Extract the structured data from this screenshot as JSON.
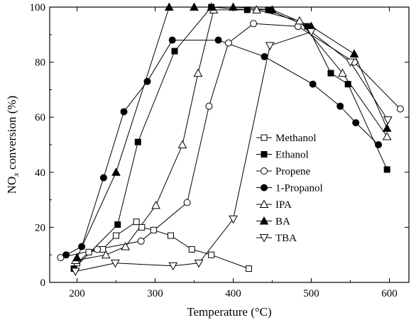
{
  "chart_data": {
    "type": "line",
    "xlabel": "Temperature (°C)",
    "ylabel": "NO",
    "ylabel_sub": "x",
    "ylabel_suffix": " conversion (%)",
    "xlim": [
      165,
      625
    ],
    "ylim": [
      0,
      100
    ],
    "xticks": [
      200,
      300,
      400,
      500,
      600
    ],
    "yticks": [
      0,
      20,
      40,
      60,
      80,
      100
    ],
    "grid": false,
    "legend_position": "center-right",
    "series": [
      {
        "name": "Methanol",
        "marker": "square-open",
        "x": [
          200,
          215,
          233,
          250,
          276,
          283,
          298,
          320,
          347,
          372,
          420
        ],
        "y": [
          7,
          11,
          12,
          17,
          22,
          20,
          19,
          17,
          12,
          10,
          5
        ]
      },
      {
        "name": "Ethanol",
        "marker": "square-filled",
        "x": [
          196,
          252,
          278,
          325,
          372,
          418,
          445,
          495,
          525,
          547,
          597
        ],
        "y": [
          5,
          21,
          51,
          84,
          100,
          99,
          99,
          93,
          76,
          72,
          41
        ]
      },
      {
        "name": "Propene",
        "marker": "circle-open",
        "x": [
          179,
          226,
          282,
          341,
          369,
          394,
          426,
          483,
          555,
          614
        ],
        "y": [
          9,
          12,
          15,
          29,
          64,
          87,
          94,
          93,
          80,
          63
        ]
      },
      {
        "name": "1-Propanol",
        "marker": "circle-filled",
        "x": [
          186,
          206,
          234,
          260,
          290,
          322,
          381,
          440,
          502,
          537,
          557,
          586
        ],
        "y": [
          10,
          13,
          38,
          62,
          73,
          88,
          88,
          82,
          72,
          64,
          58,
          50
        ]
      },
      {
        "name": "IPA",
        "marker": "triangle-up-open",
        "x": [
          198,
          237,
          262,
          301,
          335,
          355,
          375,
          430,
          485,
          540,
          597
        ],
        "y": [
          8,
          10,
          13,
          28,
          50,
          76,
          99,
          99,
          95,
          76,
          53
        ]
      },
      {
        "name": "BA",
        "marker": "triangle-up-filled",
        "x": [
          200,
          250,
          318,
          350,
          372,
          400,
          450,
          500,
          555,
          597
        ],
        "y": [
          9,
          40,
          100,
          100,
          100,
          100,
          99,
          93,
          83,
          56
        ]
      },
      {
        "name": "TBA",
        "marker": "triangle-down-open",
        "x": [
          198,
          249,
          323,
          356,
          400,
          447,
          500,
          550,
          598
        ],
        "y": [
          4,
          7,
          6,
          7,
          23,
          86,
          91,
          80,
          59
        ]
      }
    ]
  }
}
